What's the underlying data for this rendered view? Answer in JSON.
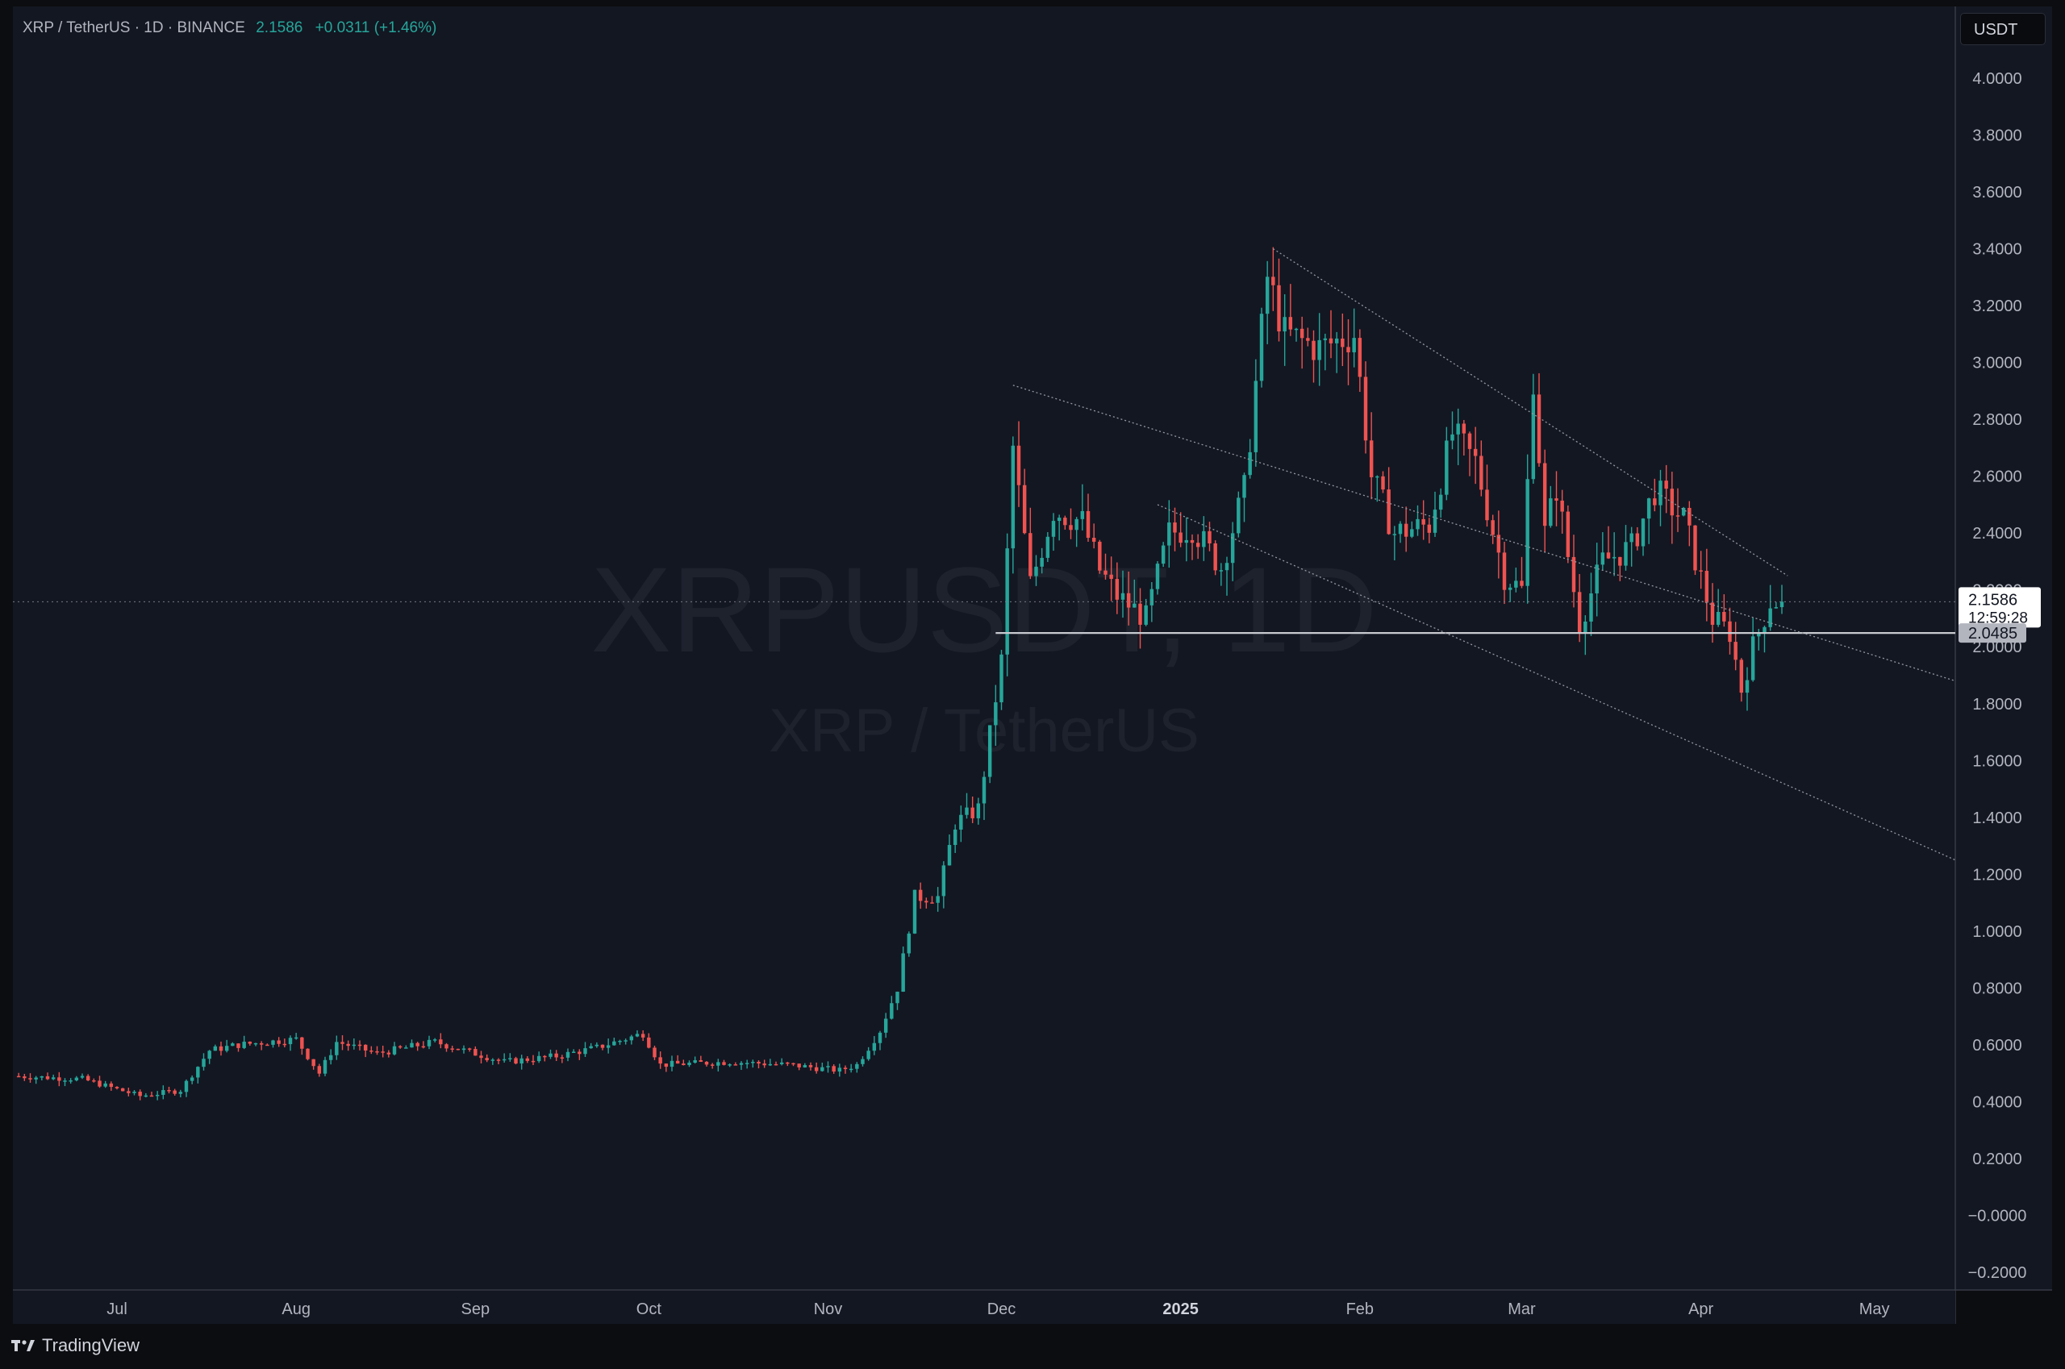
{
  "header": {
    "symbol_line": "XRP / TetherUS · 1D · BINANCE",
    "last_price": "2.1586",
    "change": "+0.0311 (+1.46%)",
    "unit_button": "USDT"
  },
  "watermark": {
    "line1": "XRPUSDT, 1D",
    "line2": "XRP / TetherUS"
  },
  "price_labels": {
    "current_price": "2.1586",
    "countdown": "12:59:28",
    "support_price": "2.0485"
  },
  "footer": {
    "brand": "TradingView"
  },
  "colors": {
    "background": "#131722",
    "up": "#26a69a",
    "down": "#ef5350",
    "grid_text": "#b2b5be"
  },
  "chart_data": {
    "type": "candlestick",
    "interval": "1D",
    "ylim": [
      -0.2,
      4.0
    ],
    "y_ticks": [
      "4.0000",
      "3.8000",
      "3.6000",
      "3.4000",
      "3.2000",
      "3.0000",
      "2.8000",
      "2.6000",
      "2.4000",
      "2.2000",
      "2.0000",
      "1.8000",
      "1.6000",
      "1.4000",
      "1.2000",
      "1.0000",
      "0.8000",
      "0.6000",
      "0.4000",
      "0.2000",
      "−0.0000",
      "−0.2000"
    ],
    "x_labels": [
      {
        "label": "Jul",
        "date": "2024-07-01"
      },
      {
        "label": "Aug",
        "date": "2024-08-01"
      },
      {
        "label": "Sep",
        "date": "2024-09-01"
      },
      {
        "label": "Oct",
        "date": "2024-10-01"
      },
      {
        "label": "Nov",
        "date": "2024-11-01"
      },
      {
        "label": "Dec",
        "date": "2024-12-01"
      },
      {
        "label": "2025",
        "date": "2025-01-01"
      },
      {
        "label": "Feb",
        "date": "2025-02-01"
      },
      {
        "label": "Mar",
        "date": "2025-03-01"
      },
      {
        "label": "Apr",
        "date": "2025-04-01"
      },
      {
        "label": "May",
        "date": "2025-05-01"
      }
    ],
    "x_range": [
      "2024-06-13",
      "2025-05-15"
    ],
    "close_path": [
      [
        "2024-06-13",
        0.49
      ],
      [
        "2024-06-25",
        0.48
      ],
      [
        "2024-07-05",
        0.42
      ],
      [
        "2024-07-12",
        0.44
      ],
      [
        "2024-07-17",
        0.58
      ],
      [
        "2024-07-22",
        0.6
      ],
      [
        "2024-08-01",
        0.62
      ],
      [
        "2024-08-05",
        0.5
      ],
      [
        "2024-08-08",
        0.61
      ],
      [
        "2024-08-15",
        0.57
      ],
      [
        "2024-08-25",
        0.61
      ],
      [
        "2024-09-06",
        0.54
      ],
      [
        "2024-09-15",
        0.56
      ],
      [
        "2024-09-22",
        0.59
      ],
      [
        "2024-09-30",
        0.64
      ],
      [
        "2024-10-03",
        0.53
      ],
      [
        "2024-10-15",
        0.54
      ],
      [
        "2024-10-25",
        0.53
      ],
      [
        "2024-11-03",
        0.51
      ],
      [
        "2024-11-06",
        0.53
      ],
      [
        "2024-11-10",
        0.65
      ],
      [
        "2024-11-13",
        0.8
      ],
      [
        "2024-11-16",
        1.12
      ],
      [
        "2024-11-20",
        1.12
      ],
      [
        "2024-11-23",
        1.38
      ],
      [
        "2024-11-27",
        1.43
      ],
      [
        "2024-12-01",
        1.95
      ],
      [
        "2024-12-03",
        2.7
      ],
      [
        "2024-12-06",
        2.22
      ],
      [
        "2024-12-10",
        2.48
      ],
      [
        "2024-12-15",
        2.44
      ],
      [
        "2024-12-18",
        2.27
      ],
      [
        "2024-12-21",
        2.18
      ],
      [
        "2024-12-26",
        2.1
      ],
      [
        "2024-12-30",
        2.4
      ],
      [
        "2025-01-03",
        2.42
      ],
      [
        "2025-01-08",
        2.28
      ],
      [
        "2025-01-12",
        2.55
      ],
      [
        "2025-01-16",
        3.3
      ],
      [
        "2025-01-19",
        3.1
      ],
      [
        "2025-01-25",
        3.05
      ],
      [
        "2025-01-31",
        3.1
      ],
      [
        "2025-02-03",
        2.6
      ],
      [
        "2025-02-07",
        2.4
      ],
      [
        "2025-02-13",
        2.43
      ],
      [
        "2025-02-17",
        2.75
      ],
      [
        "2025-02-21",
        2.65
      ],
      [
        "2025-02-26",
        2.25
      ],
      [
        "2025-03-01",
        2.2
      ],
      [
        "2025-03-03",
        2.95
      ],
      [
        "2025-03-05",
        2.4
      ],
      [
        "2025-03-07",
        2.56
      ],
      [
        "2025-03-11",
        2.08
      ],
      [
        "2025-03-15",
        2.3
      ],
      [
        "2025-03-20",
        2.35
      ],
      [
        "2025-03-24",
        2.55
      ],
      [
        "2025-03-29",
        2.45
      ],
      [
        "2025-04-03",
        2.1
      ],
      [
        "2025-04-06",
        2.05
      ],
      [
        "2025-04-08",
        1.85
      ],
      [
        "2025-04-10",
        2.0
      ],
      [
        "2025-04-13",
        2.16
      ],
      [
        "2025-04-15",
        2.1586
      ]
    ],
    "horizontal_line": {
      "price": 2.0485,
      "from": "2024-11-30"
    },
    "trendlines": [
      {
        "from": [
          "2024-12-03",
          2.92
        ],
        "to": [
          "2025-05-15",
          1.88
        ]
      },
      {
        "from": [
          "2024-12-28",
          2.5
        ],
        "to": [
          "2025-05-15",
          1.25
        ]
      },
      {
        "from": [
          "2025-01-17",
          3.4
        ],
        "to": [
          "2025-04-16",
          2.25
        ]
      }
    ],
    "current_price": 2.1586
  }
}
